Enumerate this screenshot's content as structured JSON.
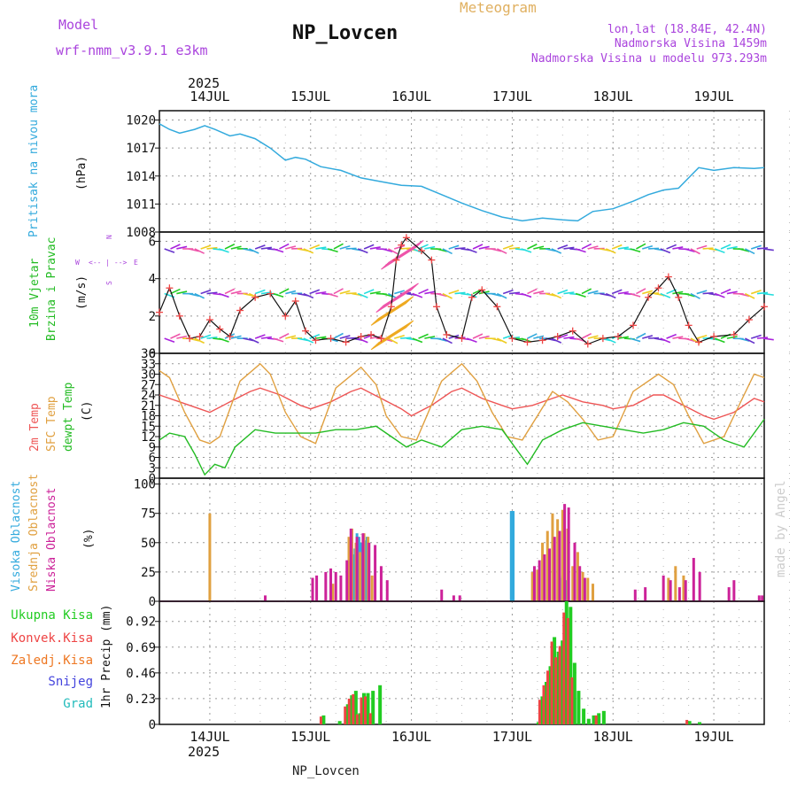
{
  "header": {
    "model_label": "Model",
    "model_name": "wrf-nmm_v3.9.1 e3km",
    "title": "NP_Lovcen",
    "meteogram_label": "Meteogram",
    "lonlat": "lon,lat (18.84E, 42.4N)",
    "elevation": "Nadmorska Visina 1459m",
    "model_elevation": "Nadmorska Visina u modelu 973.293m"
  },
  "footer": {
    "station": "NP_Lovcen",
    "credit": "made by Angel"
  },
  "time_axis": {
    "year": "2025",
    "start": "13.5",
    "days": [
      "14JUL",
      "15JUL",
      "16JUL",
      "17JUL",
      "18JUL",
      "19JUL"
    ],
    "day_values": [
      14,
      15,
      16,
      17,
      18,
      19
    ],
    "range": [
      13.5,
      19.5
    ]
  },
  "colors": {
    "pressure": "#33aadd",
    "wind": "#22cc22",
    "speed_obs": "#ee4444",
    "speed_line": "#111111",
    "temp2m": "#ee5555",
    "sfc": "#e0a040",
    "dew": "#22bb22",
    "high_cloud": "#33aadd",
    "mid_cloud": "#e0a040",
    "low_cloud": "#cc2299",
    "total_precip": "#22cc22",
    "conv_precip": "#ee4444",
    "strat_precip": "#ee7722",
    "snow": "#4444dd",
    "hail": "#22bbbb",
    "purple_text": "#aa44dd",
    "credit": "#cccccc"
  },
  "chart_data": [
    {
      "type": "line",
      "name": "pressure",
      "ylabel_left": "Pritisak na nivou mora",
      "unit": "(hPa)",
      "ylim": [
        1008,
        1021
      ],
      "yticks": [
        1008,
        1011,
        1014,
        1017,
        1020
      ],
      "x": [
        13.5,
        13.6,
        13.7,
        13.85,
        13.95,
        14.05,
        14.2,
        14.3,
        14.45,
        14.6,
        14.75,
        14.85,
        14.95,
        15.1,
        15.3,
        15.5,
        15.7,
        15.9,
        16.1,
        16.3,
        16.5,
        16.7,
        16.9,
        17.1,
        17.3,
        17.5,
        17.65,
        17.8,
        18.0,
        18.2,
        18.35,
        18.5,
        18.65,
        18.75,
        18.85,
        19.0,
        19.2,
        19.4,
        19.5
      ],
      "values": [
        1019.6,
        1019.0,
        1018.6,
        1019.0,
        1019.4,
        1019.0,
        1018.3,
        1018.5,
        1018.0,
        1017.0,
        1015.7,
        1016.0,
        1015.8,
        1015.0,
        1014.6,
        1013.8,
        1013.4,
        1013.0,
        1012.9,
        1012.0,
        1011.1,
        1010.3,
        1009.6,
        1009.2,
        1009.5,
        1009.3,
        1009.2,
        1010.2,
        1010.5,
        1011.3,
        1012.0,
        1012.5,
        1012.7,
        1013.8,
        1014.9,
        1014.6,
        1014.9,
        1014.8,
        1014.9
      ]
    },
    {
      "type": "line",
      "name": "wind",
      "ylabel_left": [
        "10m Vjetar",
        "Brzina i Pravac"
      ],
      "unit": "(m/s)",
      "compass": {
        "w": "W",
        "e": "E",
        "n": "N",
        "s": "S"
      },
      "ylim": [
        0,
        6.5
      ],
      "yticks": [
        0,
        2,
        4,
        6
      ],
      "x": [
        13.5,
        13.6,
        13.7,
        13.8,
        13.9,
        14.0,
        14.1,
        14.2,
        14.3,
        14.45,
        14.6,
        14.75,
        14.85,
        14.95,
        15.05,
        15.2,
        15.35,
        15.5,
        15.6,
        15.7,
        15.8,
        15.85,
        15.9,
        15.95,
        16.1,
        16.2,
        16.25,
        16.35,
        16.5,
        16.6,
        16.7,
        16.85,
        17.0,
        17.15,
        17.3,
        17.45,
        17.6,
        17.75,
        17.9,
        18.05,
        18.2,
        18.35,
        18.45,
        18.55,
        18.65,
        18.75,
        18.85,
        19.0,
        19.2,
        19.35,
        19.5
      ],
      "values": [
        2.2,
        3.5,
        2.0,
        0.8,
        0.9,
        1.8,
        1.3,
        0.9,
        2.3,
        3.0,
        3.2,
        2.0,
        2.8,
        1.2,
        0.7,
        0.8,
        0.6,
        0.9,
        1.0,
        0.8,
        2.5,
        5.0,
        5.8,
        6.2,
        5.5,
        5.0,
        2.5,
        1.0,
        0.8,
        3.0,
        3.4,
        2.5,
        0.8,
        0.6,
        0.7,
        0.9,
        1.2,
        0.5,
        0.8,
        0.9,
        1.5,
        3.0,
        3.5,
        4.1,
        3.0,
        1.5,
        0.6,
        0.9,
        1.0,
        1.8,
        2.5
      ],
      "barb_rows": [
        0.8,
        3.2,
        5.6
      ]
    },
    {
      "type": "line",
      "name": "temperature",
      "ylabel_left": [
        "2m Temp",
        "SFC Temp",
        "dewpt Temp"
      ],
      "unit": "(C)",
      "ylim": [
        0,
        36
      ],
      "yticks": [
        0,
        3,
        6,
        9,
        12,
        15,
        18,
        21,
        24,
        27,
        30,
        33,
        36
      ],
      "series": [
        {
          "name": "2m Temp",
          "x": [
            13.5,
            13.7,
            13.9,
            14.0,
            14.2,
            14.4,
            14.5,
            14.7,
            14.9,
            15.0,
            15.2,
            15.4,
            15.5,
            15.7,
            15.9,
            16.0,
            16.2,
            16.4,
            16.5,
            16.7,
            16.9,
            17.0,
            17.2,
            17.4,
            17.5,
            17.7,
            17.9,
            18.0,
            18.2,
            18.4,
            18.5,
            18.7,
            18.9,
            19.0,
            19.2,
            19.4,
            19.5
          ],
          "values": [
            24,
            22,
            20,
            19,
            22,
            25,
            26,
            24,
            21,
            20,
            22,
            25,
            26,
            23,
            20,
            18,
            21,
            25,
            26,
            23,
            21,
            20,
            21,
            23,
            24,
            22,
            21,
            20,
            21,
            24,
            24,
            21,
            18,
            17,
            19,
            23,
            22
          ]
        },
        {
          "name": "SFC Temp",
          "x": [
            13.5,
            13.6,
            13.75,
            13.9,
            14.0,
            14.1,
            14.3,
            14.5,
            14.6,
            14.75,
            14.9,
            15.05,
            15.25,
            15.5,
            15.65,
            15.75,
            15.9,
            16.05,
            16.3,
            16.5,
            16.65,
            16.8,
            16.95,
            17.1,
            17.25,
            17.4,
            17.55,
            17.7,
            17.85,
            18.0,
            18.2,
            18.45,
            18.6,
            18.75,
            18.9,
            19.1,
            19.3,
            19.4,
            19.5
          ],
          "values": [
            31,
            29,
            19,
            11,
            10,
            12,
            28,
            33,
            30,
            19,
            12,
            10,
            26,
            32,
            27,
            18,
            12,
            11,
            28,
            33,
            28,
            19,
            12,
            11,
            18,
            25,
            22,
            17,
            11,
            12,
            25,
            30,
            27,
            18,
            10,
            12,
            24,
            30,
            29
          ]
        },
        {
          "name": "dewpt Temp",
          "x": [
            13.5,
            13.6,
            13.75,
            13.85,
            13.95,
            14.05,
            14.15,
            14.25,
            14.45,
            14.65,
            14.85,
            15.05,
            15.25,
            15.45,
            15.65,
            15.8,
            15.95,
            16.1,
            16.3,
            16.5,
            16.7,
            16.9,
            17.05,
            17.15,
            17.3,
            17.5,
            17.7,
            17.9,
            18.1,
            18.3,
            18.5,
            18.7,
            18.9,
            19.1,
            19.3,
            19.5
          ],
          "values": [
            11,
            13,
            12,
            7,
            1,
            4,
            3,
            9,
            14,
            13,
            13,
            13,
            14,
            14,
            15,
            12,
            9,
            11,
            9,
            14,
            15,
            14,
            8,
            4,
            11,
            14,
            16,
            15,
            14,
            13,
            14,
            16,
            15,
            11,
            9,
            17
          ]
        }
      ]
    },
    {
      "type": "bar",
      "name": "clouds",
      "ylabel_left": [
        "Visoka Oblacnost",
        "Srednja Oblacnost",
        "Niska Oblacnost"
      ],
      "unit": "(%)",
      "ylim": [
        0,
        105
      ],
      "yticks": [
        0,
        25,
        50,
        75,
        100
      ],
      "series": [
        {
          "name": "Visoka",
          "x": [
            15.42,
            15.44,
            15.46,
            15.48,
            15.5,
            15.52,
            15.54,
            15.56,
            16.99,
            17.0,
            17.01,
            17.47,
            17.5,
            17.53,
            17.8
          ],
          "values": [
            40,
            45,
            58,
            55,
            50,
            48,
            52,
            55,
            77,
            77,
            77,
            22,
            20,
            18,
            10
          ]
        },
        {
          "name": "Srednja",
          "x": [
            14.0,
            15.22,
            15.38,
            15.41,
            15.45,
            15.49,
            15.53,
            15.57,
            15.61,
            17.2,
            17.25,
            17.3,
            17.35,
            17.4,
            17.45,
            17.5,
            17.55,
            17.6,
            17.65,
            17.7,
            17.75,
            17.8,
            18.55,
            18.62,
            18.7
          ],
          "values": [
            75,
            15,
            55,
            62,
            50,
            42,
            58,
            55,
            22,
            25,
            27,
            50,
            60,
            75,
            70,
            78,
            62,
            30,
            42,
            25,
            20,
            15,
            20,
            30,
            22
          ]
        },
        {
          "name": "Niska",
          "x": [
            14.55,
            15.02,
            15.06,
            15.15,
            15.2,
            15.25,
            15.3,
            15.36,
            15.4,
            15.46,
            15.52,
            15.58,
            15.64,
            15.7,
            15.76,
            16.3,
            16.42,
            16.48,
            17.22,
            17.27,
            17.32,
            17.37,
            17.42,
            17.47,
            17.52,
            17.56,
            17.62,
            17.67,
            17.72,
            18.22,
            18.32,
            18.5,
            18.57,
            18.66,
            18.72,
            18.8,
            18.86,
            19.15,
            19.2,
            19.45,
            19.48
          ],
          "values": [
            5,
            20,
            22,
            25,
            28,
            25,
            22,
            35,
            62,
            55,
            58,
            50,
            48,
            30,
            18,
            10,
            5,
            5,
            30,
            35,
            40,
            45,
            55,
            60,
            83,
            80,
            50,
            30,
            20,
            10,
            12,
            22,
            18,
            12,
            18,
            37,
            25,
            12,
            18,
            5,
            5
          ]
        }
      ]
    },
    {
      "type": "bar",
      "name": "precipitation",
      "ylabel_left": [
        "Ukupna Kisa",
        "Konvek.Kisa",
        "Zaledj.Kisa",
        "Snijeg",
        "Grad"
      ],
      "unit": "1hr Precip (mm)",
      "ylim": [
        0,
        1.1
      ],
      "yticks": [
        0,
        0.23,
        0.46,
        0.69,
        0.92
      ],
      "ytick_labels": [
        "0",
        "0.23",
        "0.46",
        "0.69",
        "0.92"
      ],
      "series": [
        {
          "name": "Ukupna Kisa",
          "x": [
            15.12,
            15.28,
            15.36,
            15.4,
            15.44,
            15.48,
            15.52,
            15.56,
            15.61,
            15.68,
            17.25,
            17.29,
            17.33,
            17.37,
            17.41,
            17.45,
            17.49,
            17.53,
            17.57,
            17.61,
            17.65,
            17.7,
            17.75,
            17.8,
            17.85,
            17.9,
            18.75,
            18.85
          ],
          "values": [
            0.08,
            0.03,
            0.18,
            0.26,
            0.3,
            0.1,
            0.28,
            0.28,
            0.3,
            0.35,
            0.02,
            0.25,
            0.38,
            0.52,
            0.78,
            0.65,
            0.75,
            1.1,
            1.05,
            0.55,
            0.3,
            0.14,
            0.05,
            0.08,
            0.1,
            0.12,
            0.03,
            0.02
          ]
        },
        {
          "name": "Konvek.Kisa",
          "x": [
            15.12,
            15.36,
            15.4,
            15.44,
            15.48,
            15.52,
            15.56,
            15.61,
            17.29,
            17.33,
            17.37,
            17.41,
            17.45,
            17.49,
            17.53,
            17.57,
            17.61,
            17.85,
            18.75
          ],
          "values": [
            0.07,
            0.16,
            0.23,
            0.27,
            0.09,
            0.24,
            0.25,
            0.1,
            0.22,
            0.35,
            0.48,
            0.74,
            0.6,
            0.7,
            1.0,
            0.95,
            0.42,
            0.08,
            0.04
          ]
        }
      ]
    }
  ]
}
